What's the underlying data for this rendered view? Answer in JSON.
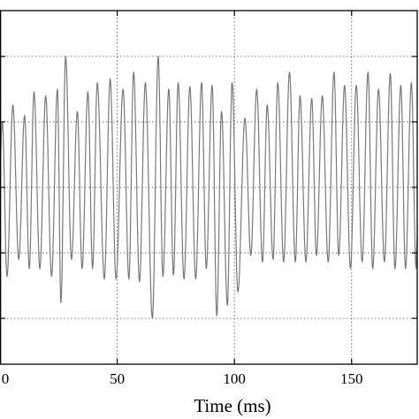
{
  "chart_data": {
    "type": "line",
    "xlabel": "Time (ms)",
    "ylabel": "",
    "title": "",
    "xlim": [
      0,
      178
    ],
    "ylim": [
      -1.35,
      1.35
    ],
    "xticks": [
      0,
      50,
      100,
      150
    ],
    "xtick_labels": [
      "0",
      "50",
      "100",
      "150"
    ],
    "yticks": [
      -1.0,
      -0.5,
      0,
      0.5,
      1.0
    ],
    "grid": true,
    "grid_style": "dotted",
    "line_color": "#7a7a7a",
    "peaks": [
      {
        "t": 1.0,
        "v": 0.5
      },
      {
        "t": 5.5,
        "v": 0.63
      },
      {
        "t": 10.5,
        "v": 0.55
      },
      {
        "t": 14.5,
        "v": 0.73
      },
      {
        "t": 19.5,
        "v": 0.7
      },
      {
        "t": 24.5,
        "v": 0.75
      },
      {
        "t": 28.0,
        "v": 1.0
      },
      {
        "t": 33.0,
        "v": 0.58
      },
      {
        "t": 37.5,
        "v": 0.73
      },
      {
        "t": 41.5,
        "v": 0.8
      },
      {
        "t": 47.0,
        "v": 0.83
      },
      {
        "t": 52.5,
        "v": 0.75
      },
      {
        "t": 57.0,
        "v": 0.88
      },
      {
        "t": 62.0,
        "v": 0.8
      },
      {
        "t": 67.5,
        "v": 1.0
      },
      {
        "t": 72.0,
        "v": 0.75
      },
      {
        "t": 76.0,
        "v": 0.8
      },
      {
        "t": 81.0,
        "v": 0.77
      },
      {
        "t": 86.0,
        "v": 0.8
      },
      {
        "t": 90.5,
        "v": 0.78
      },
      {
        "t": 94.5,
        "v": 0.58
      },
      {
        "t": 99.0,
        "v": 0.8
      },
      {
        "t": 104.5,
        "v": 0.53
      },
      {
        "t": 109.5,
        "v": 0.75
      },
      {
        "t": 114.0,
        "v": 0.63
      },
      {
        "t": 118.5,
        "v": 0.8
      },
      {
        "t": 123.5,
        "v": 0.88
      },
      {
        "t": 128.0,
        "v": 0.7
      },
      {
        "t": 133.0,
        "v": 0.68
      },
      {
        "t": 137.5,
        "v": 0.7
      },
      {
        "t": 142.5,
        "v": 0.88
      },
      {
        "t": 147.0,
        "v": 0.78
      },
      {
        "t": 152.0,
        "v": 0.78
      },
      {
        "t": 157.0,
        "v": 0.88
      },
      {
        "t": 161.5,
        "v": 0.75
      },
      {
        "t": 166.5,
        "v": 0.87
      },
      {
        "t": 171.0,
        "v": 0.78
      },
      {
        "t": 175.5,
        "v": 0.8
      }
    ],
    "troughs": [
      {
        "t": 3.0,
        "v": -0.68
      },
      {
        "t": 8.0,
        "v": -0.55
      },
      {
        "t": 12.5,
        "v": -0.62
      },
      {
        "t": 17.0,
        "v": -0.62
      },
      {
        "t": 22.0,
        "v": -0.68
      },
      {
        "t": 26.0,
        "v": -0.88
      },
      {
        "t": 30.5,
        "v": -0.55
      },
      {
        "t": 35.0,
        "v": -0.62
      },
      {
        "t": 39.5,
        "v": -0.62
      },
      {
        "t": 44.5,
        "v": -0.7
      },
      {
        "t": 49.5,
        "v": -0.7
      },
      {
        "t": 55.0,
        "v": -0.7
      },
      {
        "t": 59.5,
        "v": -0.72
      },
      {
        "t": 65.0,
        "v": -1.0
      },
      {
        "t": 69.5,
        "v": -0.68
      },
      {
        "t": 74.0,
        "v": -0.67
      },
      {
        "t": 78.5,
        "v": -0.7
      },
      {
        "t": 83.5,
        "v": -0.7
      },
      {
        "t": 88.0,
        "v": -0.62
      },
      {
        "t": 92.5,
        "v": -0.98
      },
      {
        "t": 97.0,
        "v": -0.9
      },
      {
        "t": 101.5,
        "v": -0.8
      },
      {
        "t": 107.0,
        "v": -0.52
      },
      {
        "t": 112.0,
        "v": -0.57
      },
      {
        "t": 116.5,
        "v": -0.55
      },
      {
        "t": 121.0,
        "v": -0.57
      },
      {
        "t": 126.0,
        "v": -0.57
      },
      {
        "t": 130.5,
        "v": -0.57
      },
      {
        "t": 135.0,
        "v": -0.52
      },
      {
        "t": 140.0,
        "v": -0.57
      },
      {
        "t": 144.5,
        "v": -0.52
      },
      {
        "t": 149.5,
        "v": -0.62
      },
      {
        "t": 154.5,
        "v": -0.57
      },
      {
        "t": 159.0,
        "v": -0.62
      },
      {
        "t": 164.0,
        "v": -0.57
      },
      {
        "t": 168.5,
        "v": -0.62
      },
      {
        "t": 173.0,
        "v": -0.62
      },
      {
        "t": 177.5,
        "v": -0.62
      }
    ]
  }
}
